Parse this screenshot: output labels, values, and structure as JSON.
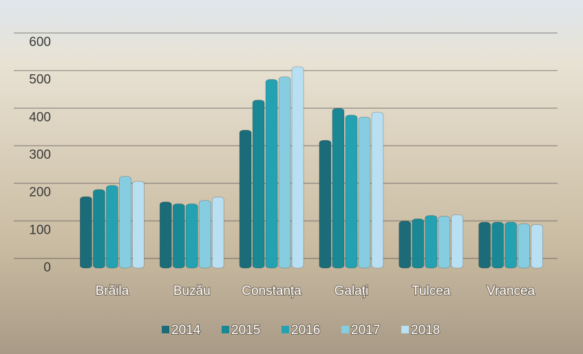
{
  "chart_data": {
    "type": "bar",
    "categories": [
      "Brăila",
      "Buzău",
      "Constanța",
      "Galați",
      "Tulcea",
      "Vrancea"
    ],
    "series": [
      {
        "name": "2014",
        "color": "#1b6c78",
        "values": [
          190,
          176,
          367,
          340,
          125,
          122
        ]
      },
      {
        "name": "2015",
        "color": "#1a8894",
        "values": [
          209,
          171,
          447,
          425,
          131,
          122
        ]
      },
      {
        "name": "2016",
        "color": "#25a2b2",
        "values": [
          220,
          171,
          502,
          407,
          140,
          122
        ]
      },
      {
        "name": "2017",
        "color": "#86cde2",
        "values": [
          244,
          180,
          509,
          402,
          138,
          118
        ]
      },
      {
        "name": "2018",
        "color": "#b9dff2",
        "values": [
          231,
          189,
          536,
          415,
          142,
          116
        ]
      }
    ],
    "ylim": [
      0,
      600
    ],
    "yticks": [
      0,
      100,
      200,
      300,
      400,
      500,
      600
    ],
    "grid": true
  }
}
